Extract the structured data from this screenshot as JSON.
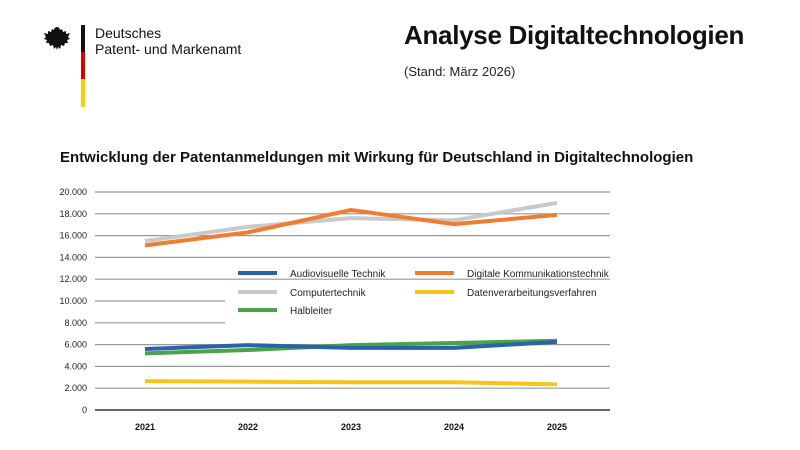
{
  "header": {
    "org_line1": "Deutsches",
    "org_line2": "Patent- und Markenamt",
    "title": "Analyse Digitaltechnologien",
    "subtitle": "(Stand: März 2026)"
  },
  "chart_data": {
    "type": "line",
    "title": "Entwicklung der Patentanmeldungen mit Wirkung für Deutschland in Digitaltechnologien",
    "xlabel": "",
    "ylabel": "",
    "categories": [
      "2021",
      "2022",
      "2023",
      "2024",
      "2025"
    ],
    "ylim": [
      0,
      20000
    ],
    "yticks": [
      "0",
      "2.000",
      "4.000",
      "6.000",
      "8.000",
      "10.000",
      "12.000",
      "14.000",
      "16.000",
      "18.000",
      "20.000"
    ],
    "grid": true,
    "legend": "center",
    "series": [
      {
        "name": "Audiovisuelle Technik",
        "color": "#2a64a8",
        "values": [
          5600,
          5950,
          5700,
          5700,
          6250
        ]
      },
      {
        "name": "Digitale Kommunikationstechnik",
        "color": "#ee7d31",
        "values": [
          15100,
          16300,
          18350,
          17050,
          17900
        ]
      },
      {
        "name": "Computertechnik",
        "color": "#c8c9cb",
        "values": [
          15500,
          16800,
          17600,
          17400,
          19000
        ]
      },
      {
        "name": "Datenverarbeitungsverfahren",
        "color": "#f5c518",
        "values": [
          2650,
          2600,
          2550,
          2550,
          2350
        ]
      },
      {
        "name": "Halbleiter",
        "color": "#4aa34a",
        "values": [
          5200,
          5500,
          5950,
          6150,
          6350
        ]
      }
    ]
  }
}
